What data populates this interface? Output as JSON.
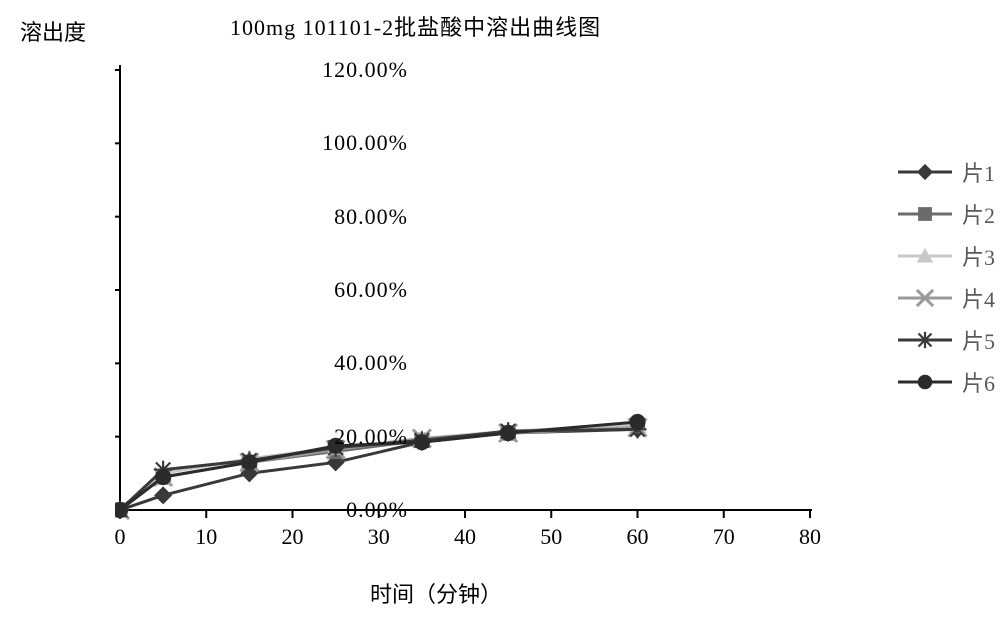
{
  "chart": {
    "type": "line",
    "title": "100mg 101101-2批盐酸中溶出曲线图",
    "ylabel": "溶出度",
    "xlabel": "时间（分钟）",
    "title_fontsize": 22,
    "label_fontsize": 22,
    "tick_fontsize": 22,
    "background_color": "#ffffff",
    "axis_color": "#000000",
    "tick_length": 8,
    "line_width": 3,
    "xlim": [
      0,
      80
    ],
    "ylim": [
      0,
      120
    ],
    "xticks": [
      0,
      10,
      20,
      30,
      40,
      50,
      60,
      70,
      80
    ],
    "yticks": [
      0,
      20,
      40,
      60,
      80,
      100,
      120
    ],
    "ytick_labels": [
      "0.00%",
      "20.00%",
      "40.00%",
      "60.00%",
      "80.00%",
      "100.00%",
      "120.00%"
    ],
    "x_values": [
      0,
      5,
      15,
      25,
      35,
      45,
      60
    ],
    "series": [
      {
        "name": "片1",
        "color": "#3b3838",
        "marker": "diamond",
        "values": [
          0,
          4,
          10,
          13,
          18.5,
          21,
          22
        ]
      },
      {
        "name": "片2",
        "color": "#6b6b6b",
        "marker": "square",
        "values": [
          0,
          9,
          13,
          16,
          19,
          21,
          23
        ]
      },
      {
        "name": "片3",
        "color": "#c8c8c8",
        "marker": "triangle",
        "values": [
          0,
          10,
          14,
          17,
          19.5,
          21.5,
          23
        ]
      },
      {
        "name": "片4",
        "color": "#9a9a9a",
        "marker": "cross",
        "values": [
          0,
          9,
          13,
          16.5,
          19.5,
          21,
          22.5
        ]
      },
      {
        "name": "片5",
        "color": "#3b3838",
        "marker": "star",
        "values": [
          0,
          11,
          13.5,
          17,
          19,
          21.5,
          22
        ]
      },
      {
        "name": "片6",
        "color": "#2b2b2b",
        "marker": "circle",
        "values": [
          0,
          9,
          13,
          17.5,
          18.5,
          21,
          24
        ]
      }
    ],
    "legend_position": "right",
    "legend_fontsize": 22,
    "legend_text_color": "#595959",
    "marker_size": 9
  }
}
